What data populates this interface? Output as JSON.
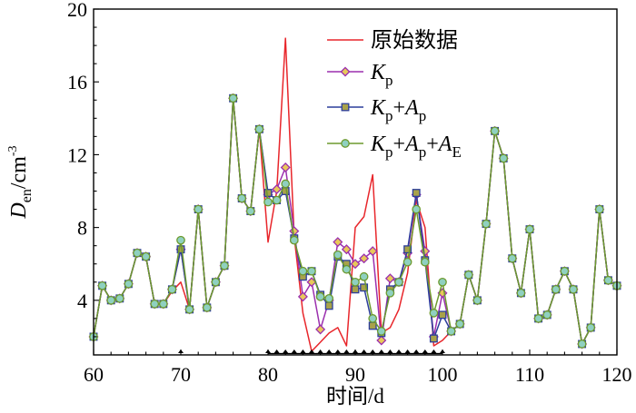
{
  "chart_data": {
    "type": "line",
    "xlabel": "时间/d",
    "ylabel": "D_en/cm^-3",
    "ylabel_parts": {
      "main": "D",
      "sub": "en",
      "unit": "/cm",
      "sup": "-3"
    },
    "xlim": [
      60,
      120
    ],
    "ylim": [
      1,
      20
    ],
    "xticks": [
      60,
      70,
      80,
      90,
      100,
      110,
      120
    ],
    "yticks": [
      4,
      8,
      12,
      16,
      20
    ],
    "marker_days": [
      70,
      80,
      81,
      82,
      83,
      84,
      85,
      86,
      87,
      88,
      89,
      90,
      91,
      92,
      93,
      94,
      95,
      96,
      97,
      98,
      99,
      100
    ],
    "series": [
      {
        "name": "原始数据",
        "legend_label": "原始数据",
        "color": "#e8262b",
        "marker": "none",
        "points": [
          [
            60,
            2.0
          ],
          [
            61,
            4.8
          ],
          [
            62,
            4.0
          ],
          [
            63,
            4.1
          ],
          [
            64,
            4.9
          ],
          [
            65,
            6.6
          ],
          [
            66,
            6.4
          ],
          [
            67,
            3.8
          ],
          [
            68,
            3.8
          ],
          [
            69,
            4.5
          ],
          [
            70,
            5.0
          ],
          [
            71,
            3.5
          ],
          [
            72,
            9.0
          ],
          [
            73,
            3.6
          ],
          [
            74,
            5.0
          ],
          [
            75,
            5.9
          ],
          [
            76,
            15.1
          ],
          [
            77,
            9.6
          ],
          [
            78,
            8.9
          ],
          [
            79,
            13.4
          ],
          [
            80,
            7.2
          ],
          [
            81,
            10.0
          ],
          [
            82,
            18.4
          ],
          [
            83,
            7.5
          ],
          [
            84,
            3.3
          ],
          [
            85,
            1.2
          ],
          [
            86,
            1.7
          ],
          [
            87,
            2.2
          ],
          [
            88,
            2.5
          ],
          [
            89,
            1.5
          ],
          [
            90,
            8.0
          ],
          [
            91,
            8.6
          ],
          [
            92,
            10.9
          ],
          [
            93,
            2.2
          ],
          [
            94,
            2.5
          ],
          [
            95,
            3.5
          ],
          [
            96,
            5.5
          ],
          [
            97,
            9.5
          ],
          [
            98,
            8.0
          ],
          [
            99,
            1.5
          ],
          [
            100,
            1.8
          ],
          [
            101,
            2.3
          ],
          [
            102,
            2.7
          ],
          [
            103,
            5.4
          ],
          [
            104,
            4.0
          ],
          [
            105,
            8.2
          ],
          [
            106,
            13.3
          ],
          [
            107,
            11.8
          ],
          [
            108,
            6.3
          ],
          [
            109,
            4.4
          ],
          [
            110,
            7.9
          ],
          [
            111,
            3.0
          ],
          [
            112,
            3.2
          ],
          [
            113,
            4.6
          ],
          [
            114,
            5.6
          ],
          [
            115,
            4.6
          ],
          [
            116,
            1.6
          ],
          [
            117,
            2.5
          ],
          [
            118,
            9.0
          ],
          [
            119,
            5.1
          ],
          [
            120,
            4.8
          ]
        ]
      },
      {
        "name": "Kp",
        "legend_label": {
          "main": "K",
          "sub": "p"
        },
        "color": "#9b2fae",
        "marker_fill": "#e8c85a",
        "marker": "diamond",
        "points": [
          [
            60,
            2.0
          ],
          [
            61,
            4.8
          ],
          [
            62,
            4.0
          ],
          [
            63,
            4.1
          ],
          [
            64,
            4.9
          ],
          [
            65,
            6.6
          ],
          [
            66,
            6.4
          ],
          [
            67,
            3.8
          ],
          [
            68,
            3.8
          ],
          [
            69,
            4.6
          ],
          [
            70,
            6.8
          ],
          [
            71,
            3.5
          ],
          [
            72,
            9.0
          ],
          [
            73,
            3.6
          ],
          [
            74,
            5.0
          ],
          [
            75,
            5.9
          ],
          [
            76,
            15.1
          ],
          [
            77,
            9.6
          ],
          [
            78,
            8.9
          ],
          [
            79,
            13.4
          ],
          [
            80,
            9.8
          ],
          [
            81,
            10.1
          ],
          [
            82,
            11.3
          ],
          [
            83,
            7.8
          ],
          [
            84,
            4.2
          ],
          [
            85,
            5.0
          ],
          [
            86,
            2.4
          ],
          [
            87,
            4.0
          ],
          [
            88,
            7.2
          ],
          [
            89,
            6.8
          ],
          [
            90,
            6.0
          ],
          [
            91,
            6.3
          ],
          [
            92,
            6.7
          ],
          [
            93,
            1.8
          ],
          [
            94,
            5.2
          ],
          [
            95,
            5.0
          ],
          [
            96,
            6.6
          ],
          [
            97,
            9.8
          ],
          [
            98,
            6.7
          ],
          [
            99,
            2.0
          ],
          [
            100,
            4.4
          ],
          [
            101,
            2.3
          ],
          [
            102,
            2.7
          ],
          [
            103,
            5.4
          ],
          [
            104,
            4.0
          ],
          [
            105,
            8.2
          ],
          [
            106,
            13.3
          ],
          [
            107,
            11.8
          ],
          [
            108,
            6.3
          ],
          [
            109,
            4.4
          ],
          [
            110,
            7.9
          ],
          [
            111,
            3.0
          ],
          [
            112,
            3.2
          ],
          [
            113,
            4.6
          ],
          [
            114,
            5.6
          ],
          [
            115,
            4.6
          ],
          [
            116,
            1.6
          ],
          [
            117,
            2.5
          ],
          [
            118,
            9.0
          ],
          [
            119,
            5.1
          ],
          [
            120,
            4.8
          ]
        ]
      },
      {
        "name": "Kp+Ap",
        "legend_label": {
          "parts": [
            [
              "K",
              "p"
            ],
            [
              "A",
              "p"
            ]
          ]
        },
        "color": "#2c3e9b",
        "marker_fill": "#a8a24a",
        "marker": "square",
        "points": [
          [
            60,
            2.0
          ],
          [
            61,
            4.8
          ],
          [
            62,
            4.0
          ],
          [
            63,
            4.1
          ],
          [
            64,
            4.9
          ],
          [
            65,
            6.6
          ],
          [
            66,
            6.4
          ],
          [
            67,
            3.8
          ],
          [
            68,
            3.8
          ],
          [
            69,
            4.6
          ],
          [
            70,
            6.8
          ],
          [
            71,
            3.5
          ],
          [
            72,
            9.0
          ],
          [
            73,
            3.6
          ],
          [
            74,
            5.0
          ],
          [
            75,
            5.9
          ],
          [
            76,
            15.1
          ],
          [
            77,
            9.6
          ],
          [
            78,
            8.9
          ],
          [
            79,
            13.4
          ],
          [
            80,
            9.9
          ],
          [
            81,
            9.5
          ],
          [
            82,
            10.0
          ],
          [
            83,
            7.4
          ],
          [
            84,
            5.3
          ],
          [
            85,
            5.6
          ],
          [
            86,
            4.3
          ],
          [
            87,
            3.7
          ],
          [
            88,
            6.4
          ],
          [
            89,
            6.0
          ],
          [
            90,
            4.6
          ],
          [
            91,
            4.7
          ],
          [
            92,
            2.6
          ],
          [
            93,
            2.2
          ],
          [
            94,
            4.6
          ],
          [
            95,
            5.0
          ],
          [
            96,
            6.8
          ],
          [
            97,
            9.9
          ],
          [
            98,
            6.2
          ],
          [
            99,
            1.9
          ],
          [
            100,
            3.2
          ],
          [
            101,
            2.3
          ],
          [
            102,
            2.7
          ],
          [
            103,
            5.4
          ],
          [
            104,
            4.0
          ],
          [
            105,
            8.2
          ],
          [
            106,
            13.3
          ],
          [
            107,
            11.8
          ],
          [
            108,
            6.3
          ],
          [
            109,
            4.4
          ],
          [
            110,
            7.9
          ],
          [
            111,
            3.0
          ],
          [
            112,
            3.2
          ],
          [
            113,
            4.6
          ],
          [
            114,
            5.6
          ],
          [
            115,
            4.6
          ],
          [
            116,
            1.6
          ],
          [
            117,
            2.5
          ],
          [
            118,
            9.0
          ],
          [
            119,
            5.1
          ],
          [
            120,
            4.8
          ]
        ]
      },
      {
        "name": "Kp+Ap+AE",
        "legend_label": {
          "parts": [
            [
              "K",
              "p"
            ],
            [
              "A",
              "p"
            ],
            [
              "A",
              "E"
            ]
          ]
        },
        "color": "#6d9a2e",
        "marker_fill": "#8fd0c0",
        "marker": "circle",
        "points": [
          [
            60,
            2.0
          ],
          [
            61,
            4.8
          ],
          [
            62,
            4.0
          ],
          [
            63,
            4.1
          ],
          [
            64,
            4.9
          ],
          [
            65,
            6.6
          ],
          [
            66,
            6.4
          ],
          [
            67,
            3.8
          ],
          [
            68,
            3.8
          ],
          [
            69,
            4.6
          ],
          [
            70,
            7.3
          ],
          [
            71,
            3.5
          ],
          [
            72,
            9.0
          ],
          [
            73,
            3.6
          ],
          [
            74,
            5.0
          ],
          [
            75,
            5.9
          ],
          [
            76,
            15.1
          ],
          [
            77,
            9.6
          ],
          [
            78,
            8.9
          ],
          [
            79,
            13.4
          ],
          [
            80,
            9.4
          ],
          [
            81,
            9.5
          ],
          [
            82,
            10.4
          ],
          [
            83,
            7.3
          ],
          [
            84,
            5.6
          ],
          [
            85,
            5.6
          ],
          [
            86,
            4.2
          ],
          [
            87,
            4.1
          ],
          [
            88,
            6.5
          ],
          [
            89,
            5.7
          ],
          [
            90,
            5.0
          ],
          [
            91,
            5.3
          ],
          [
            92,
            3.0
          ],
          [
            93,
            2.3
          ],
          [
            94,
            4.4
          ],
          [
            95,
            5.0
          ],
          [
            96,
            6.1
          ],
          [
            97,
            9.0
          ],
          [
            98,
            6.1
          ],
          [
            99,
            3.3
          ],
          [
            100,
            5.0
          ],
          [
            101,
            2.3
          ],
          [
            102,
            2.7
          ],
          [
            103,
            5.4
          ],
          [
            104,
            4.0
          ],
          [
            105,
            8.2
          ],
          [
            106,
            13.3
          ],
          [
            107,
            11.8
          ],
          [
            108,
            6.3
          ],
          [
            109,
            4.4
          ],
          [
            110,
            7.9
          ],
          [
            111,
            3.0
          ],
          [
            112,
            3.2
          ],
          [
            113,
            4.6
          ],
          [
            114,
            5.6
          ],
          [
            115,
            4.6
          ],
          [
            116,
            1.6
          ],
          [
            117,
            2.5
          ],
          [
            118,
            9.0
          ],
          [
            119,
            5.1
          ],
          [
            120,
            4.8
          ]
        ]
      }
    ]
  }
}
